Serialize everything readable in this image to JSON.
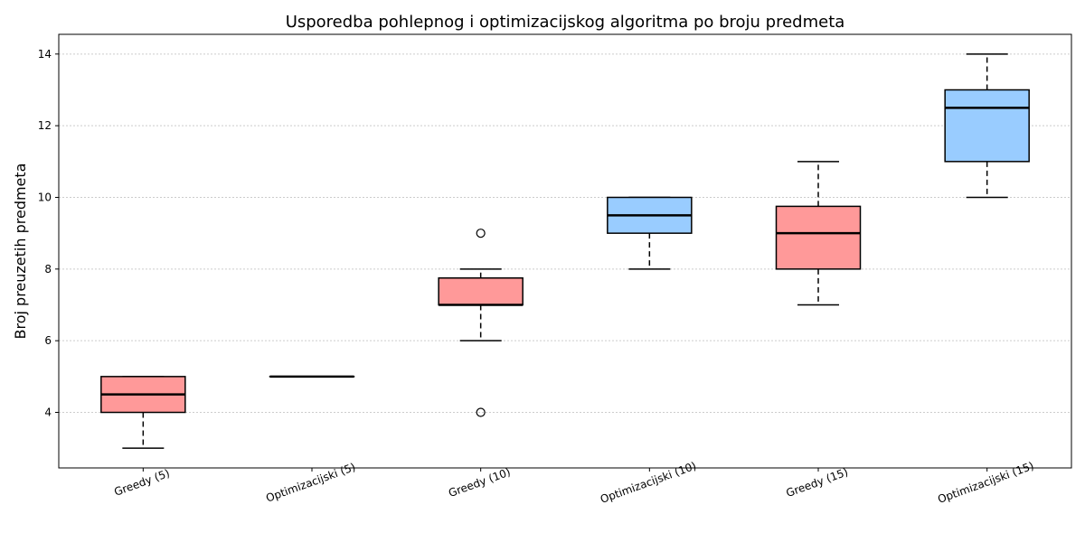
{
  "chart_data": {
    "type": "box",
    "title": "Usporedba pohlepnog i optimizacijskog algoritma po broju predmeta",
    "xlabel": "",
    "ylabel": "Broj preuzetih predmeta",
    "ylim": [
      2.45,
      14.55
    ],
    "yticks": [
      4,
      6,
      8,
      10,
      12,
      14
    ],
    "grid": {
      "y": true,
      "x": false,
      "style": "dotted"
    },
    "colors": {
      "greedy": "#ff9999",
      "optimizacijski": "#99ccff",
      "outline": "#000000",
      "grid": "#cccccc"
    },
    "categories": [
      "Greedy (5)",
      "Optimizacijski (5)",
      "Greedy (10)",
      "Optimizacijski (10)",
      "Greedy (15)",
      "Optimizacijski (15)"
    ],
    "boxes": [
      {
        "label": "Greedy (5)",
        "group": "greedy",
        "whisker_low": 3,
        "q1": 4,
        "median": 4.5,
        "q3": 5,
        "whisker_high": 5,
        "outliers": []
      },
      {
        "label": "Optimizacijski (5)",
        "group": "optimizacijski",
        "whisker_low": 5,
        "q1": 5,
        "median": 5,
        "q3": 5,
        "whisker_high": 5,
        "outliers": []
      },
      {
        "label": "Greedy (10)",
        "group": "greedy",
        "whisker_low": 6,
        "q1": 7,
        "median": 7,
        "q3": 7.75,
        "whisker_high": 8,
        "outliers": [
          9,
          4
        ]
      },
      {
        "label": "Optimizacijski (10)",
        "group": "optimizacijski",
        "whisker_low": 8,
        "q1": 9,
        "median": 9.5,
        "q3": 10,
        "whisker_high": 10,
        "outliers": []
      },
      {
        "label": "Greedy (15)",
        "group": "greedy",
        "whisker_low": 7,
        "q1": 8,
        "median": 9,
        "q3": 9.75,
        "whisker_high": 11,
        "outliers": []
      },
      {
        "label": "Optimizacijski (15)",
        "group": "optimizacijski",
        "whisker_low": 10,
        "q1": 11,
        "median": 12.5,
        "q3": 13,
        "whisker_high": 14,
        "outliers": []
      }
    ]
  }
}
